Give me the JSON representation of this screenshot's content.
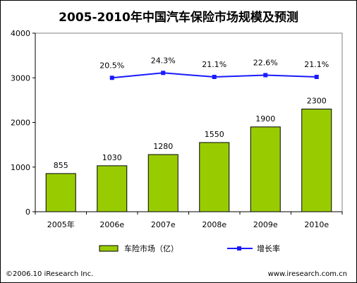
{
  "colors": {
    "bar_fill": "#99cc00",
    "bar_stroke": "#000000",
    "line": "#1a1aff",
    "marker": "#1a1aff",
    "axis": "#808080"
  },
  "chart_data": {
    "type": "bar",
    "title": "2005-2010年中国汽车保险市场规模及预测",
    "categories": [
      "2005年",
      "2006e",
      "2007e",
      "2008e",
      "2009e",
      "2010e"
    ],
    "ylim": [
      0,
      4000
    ],
    "yticks": [
      "0",
      "1000",
      "2000",
      "3000",
      "4000"
    ],
    "grid": false,
    "legend_position": "bottom",
    "series": [
      {
        "name": "车险市场（亿）",
        "type": "bar",
        "values": [
          855,
          1030,
          1280,
          1550,
          1900,
          2300
        ],
        "labels": [
          "855",
          "1030",
          "1280",
          "1550",
          "1900",
          "2300"
        ]
      },
      {
        "name": "增长率",
        "type": "line",
        "values": [
          null,
          20.5,
          24.3,
          21.1,
          22.6,
          21.1
        ],
        "labels": [
          "",
          "20.5%",
          "24.3%",
          "21.1%",
          "22.6%",
          "21.1%"
        ],
        "plot_y": [
          null,
          3000,
          3110,
          3020,
          3060,
          3020
        ]
      }
    ]
  },
  "footer": {
    "copyright": "©2006.10 iResearch Inc.",
    "website": "www.iresearch.com.cn"
  }
}
